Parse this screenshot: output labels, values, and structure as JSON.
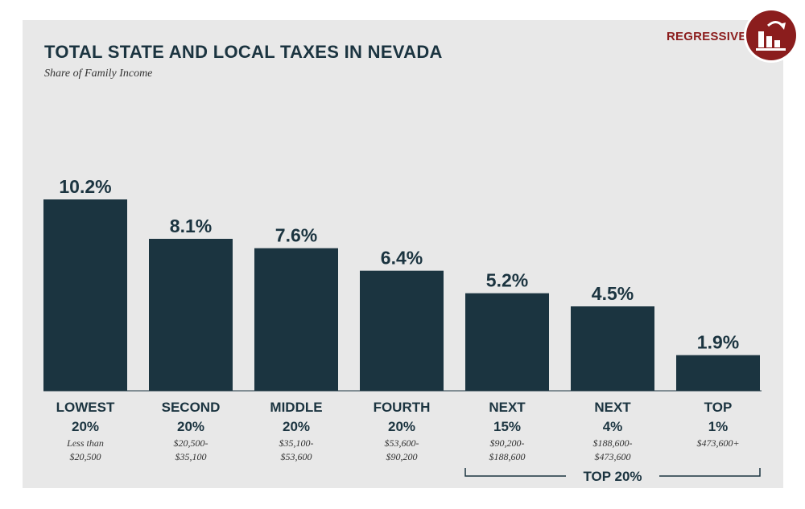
{
  "header": {
    "title": "TOTAL STATE AND LOCAL TAXES IN NEVADA",
    "subtitle": "Share of Family Income"
  },
  "badge": {
    "label": "REGRESSIVE",
    "icon": "regressive-bar-chart-icon",
    "color": "#8b1d1d"
  },
  "colors": {
    "bar": "#1b3440",
    "panel": "#e8e8e8",
    "accent": "#8b1d1d"
  },
  "chart_data": {
    "type": "bar",
    "title": "TOTAL STATE AND LOCAL TAXES IN NEVADA",
    "subtitle": "Share of Family Income",
    "categories": [
      "LOWEST 20%",
      "SECOND 20%",
      "MIDDLE 20%",
      "FOURTH 20%",
      "NEXT 15%",
      "NEXT 4%",
      "TOP 1%"
    ],
    "category_lines": [
      [
        "LOWEST",
        "20%"
      ],
      [
        "SECOND",
        "20%"
      ],
      [
        "MIDDLE",
        "20%"
      ],
      [
        "FOURTH",
        "20%"
      ],
      [
        "NEXT",
        "15%"
      ],
      [
        "NEXT",
        "4%"
      ],
      [
        "TOP",
        "1%"
      ]
    ],
    "income_ranges": [
      [
        "Less than",
        "$20,500"
      ],
      [
        "$20,500-",
        "$35,100"
      ],
      [
        "$35,100-",
        "$53,600"
      ],
      [
        "$53,600-",
        "$90,200"
      ],
      [
        "$90,200-",
        "$188,600"
      ],
      [
        "$188,600-",
        "$473,600"
      ],
      [
        "$473,600+"
      ]
    ],
    "values": [
      10.2,
      8.1,
      7.6,
      6.4,
      5.2,
      4.5,
      1.9
    ],
    "value_labels": [
      "10.2%",
      "8.1%",
      "7.6%",
      "6.4%",
      "5.2%",
      "4.5%",
      "1.9%"
    ],
    "unit": "%",
    "ylim": [
      0,
      10.2
    ],
    "grid": false,
    "legend": "none",
    "group_bracket": {
      "label": "TOP 20%",
      "from": 4,
      "to": 6
    }
  }
}
